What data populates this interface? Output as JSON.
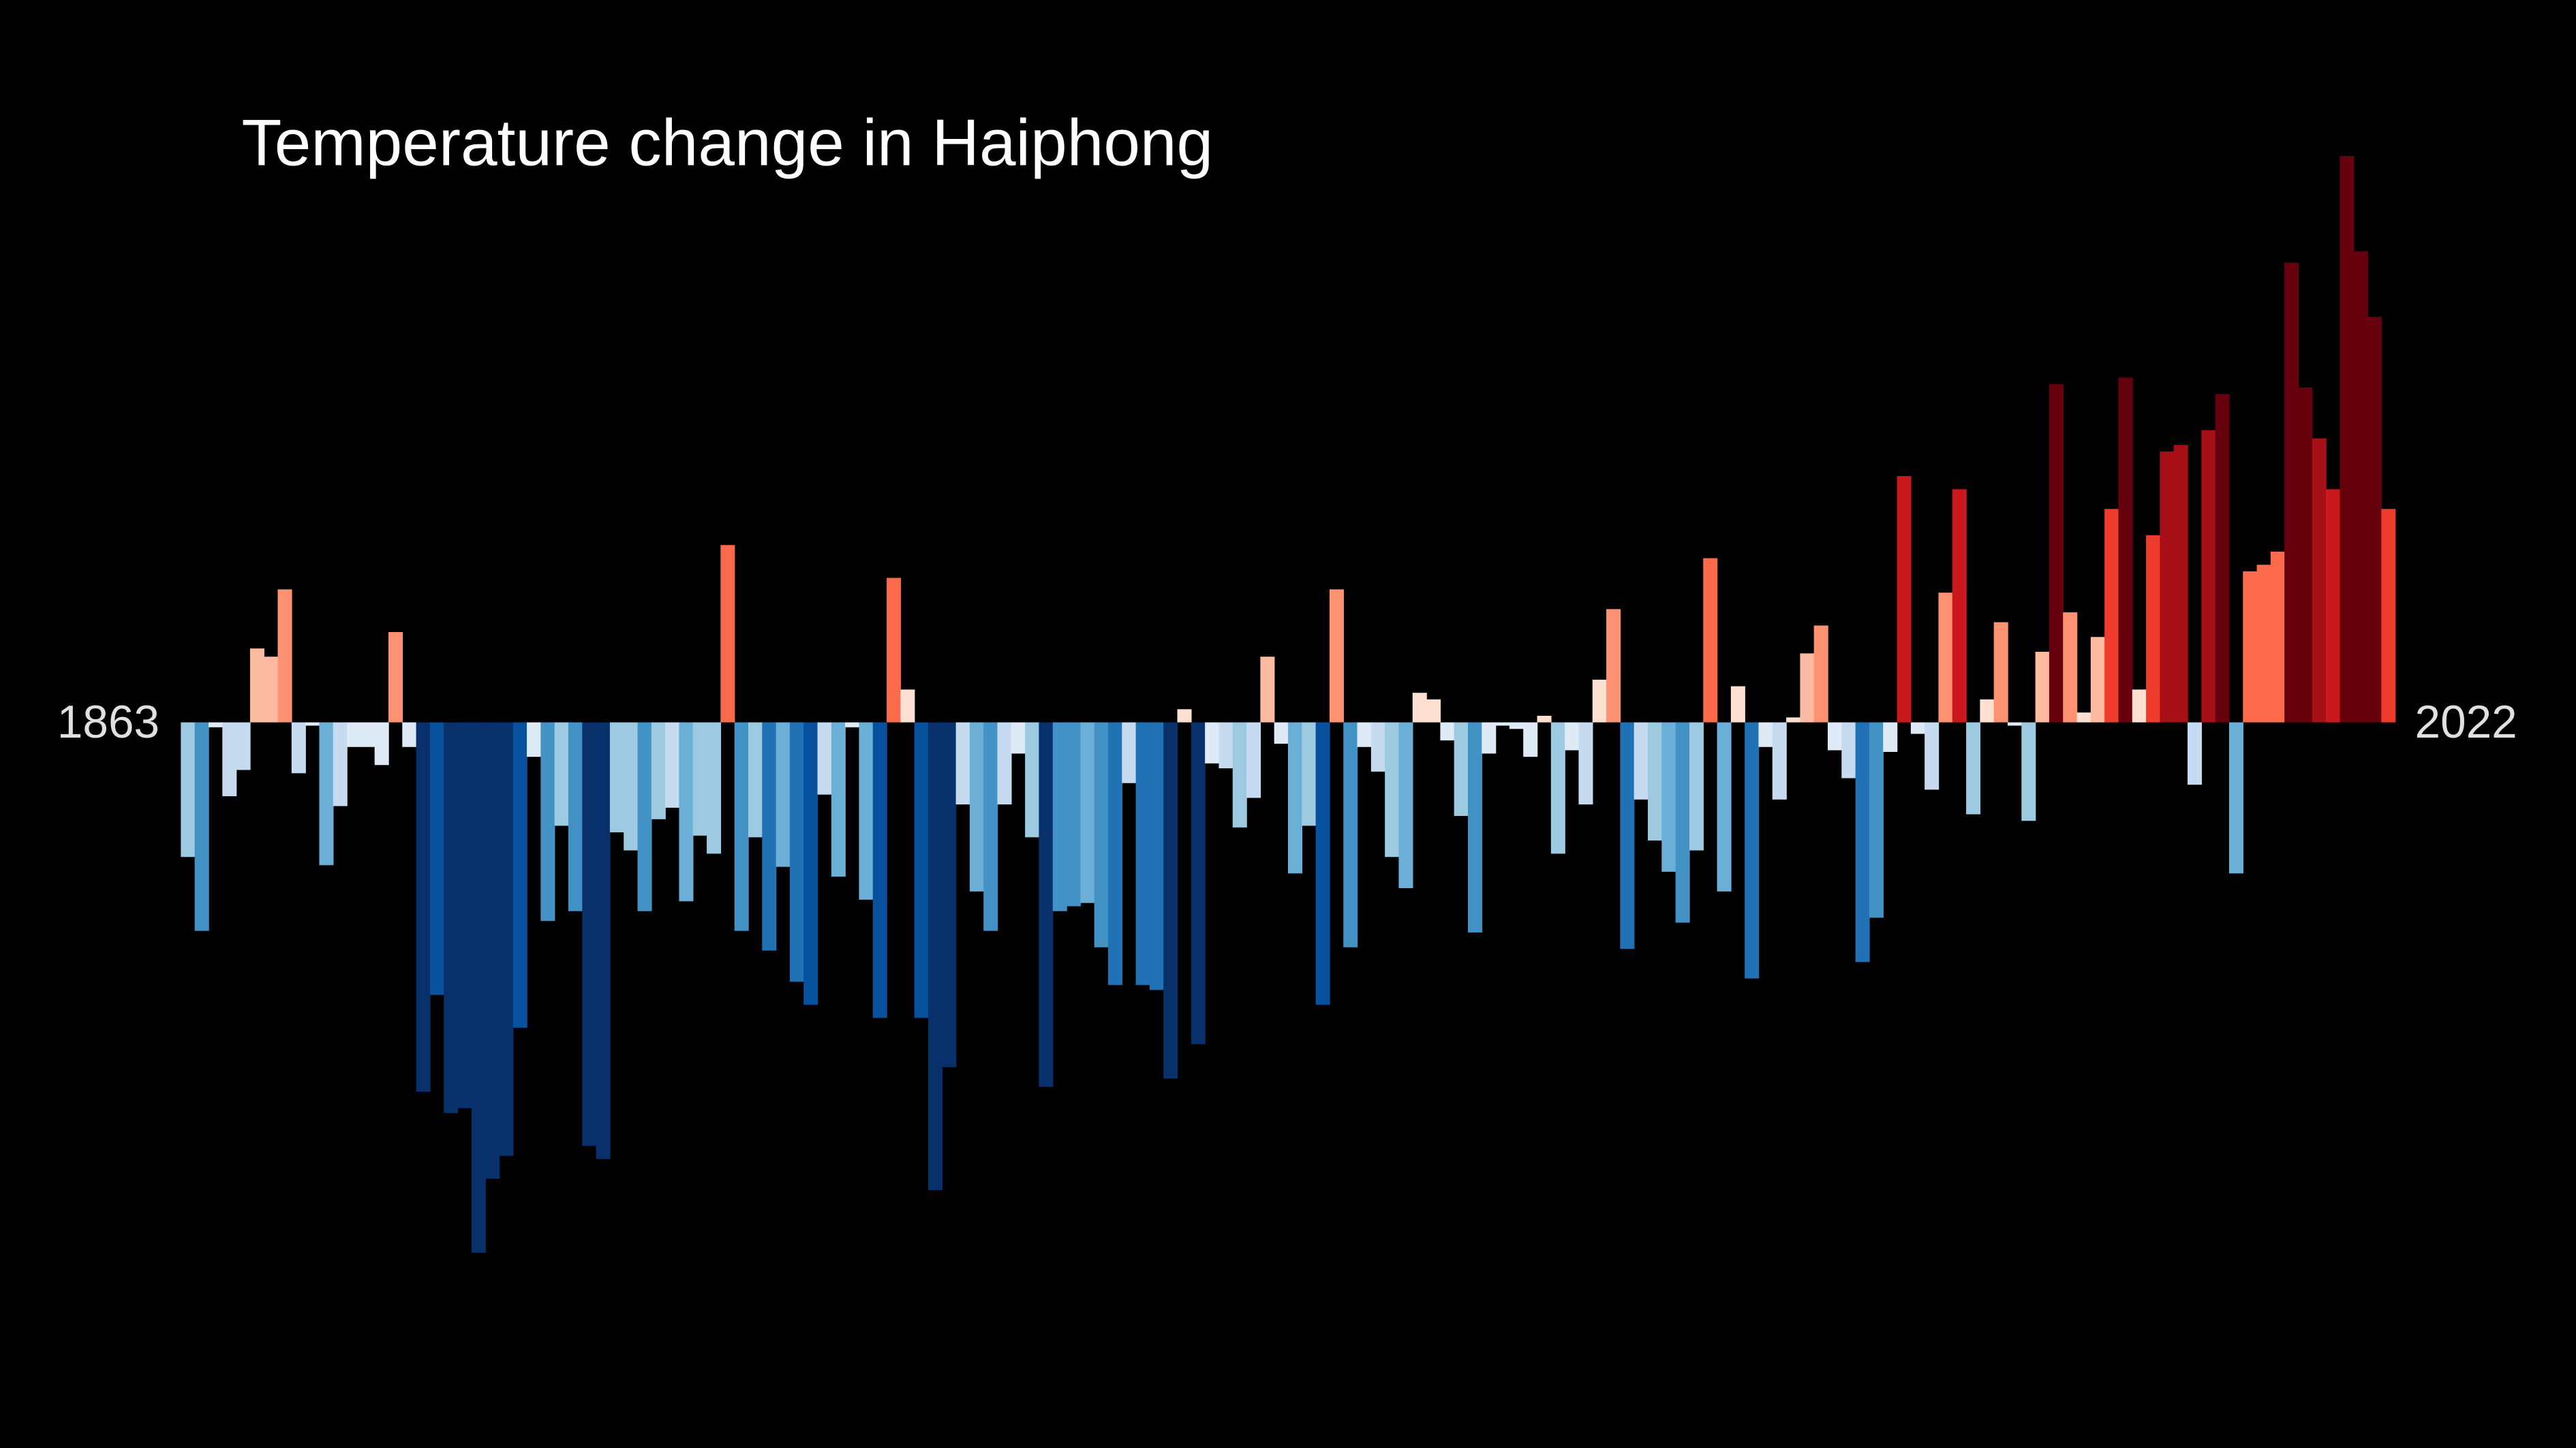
{
  "chart_data": {
    "type": "bar",
    "title": "Temperature change in Haiphong",
    "categories": [
      "1863",
      null,
      null,
      null,
      null,
      null,
      null,
      null,
      null,
      null,
      null,
      null,
      null,
      null,
      null,
      null,
      null,
      null,
      null,
      null,
      null,
      null,
      null,
      null,
      null,
      null,
      null,
      null,
      null,
      null,
      null,
      null,
      null,
      null,
      null,
      null,
      null,
      null,
      null,
      null,
      null,
      null,
      null,
      null,
      null,
      null,
      null,
      null,
      null,
      null,
      null,
      null,
      null,
      null,
      null,
      null,
      null,
      null,
      null,
      null,
      null,
      null,
      null,
      null,
      null,
      null,
      null,
      null,
      null,
      null,
      null,
      null,
      null,
      null,
      null,
      null,
      null,
      null,
      null,
      null,
      null,
      null,
      null,
      null,
      null,
      null,
      null,
      null,
      null,
      null,
      null,
      null,
      null,
      null,
      null,
      null,
      null,
      null,
      null,
      null,
      null,
      null,
      null,
      null,
      null,
      null,
      null,
      null,
      null,
      null,
      null,
      null,
      null,
      null,
      null,
      null,
      null,
      null,
      null,
      null,
      null,
      null,
      null,
      null,
      null,
      null,
      null,
      null,
      null,
      null,
      null,
      null,
      null,
      null,
      null,
      null,
      null,
      null,
      null,
      null,
      null,
      null,
      null,
      null,
      null,
      null,
      null,
      null,
      null,
      null,
      null,
      null,
      null,
      null,
      null,
      null,
      null,
      null,
      null,
      "2022"
    ],
    "values": [
      -0.41,
      -0.635,
      -0.015,
      -0.225,
      -0.145,
      0.225,
      0.2,
      0.405,
      -0.155,
      -0.01,
      -0.435,
      -0.255,
      -0.075,
      -0.075,
      -0.13,
      0.275,
      -0.075,
      -1.125,
      -0.83,
      -1.19,
      -1.175,
      -1.615,
      -1.39,
      -1.32,
      -0.93,
      -0.105,
      -0.605,
      -0.315,
      -0.575,
      -1.29,
      -1.33,
      -0.335,
      -0.39,
      -0.575,
      -0.295,
      -0.26,
      -0.545,
      -0.345,
      -0.4,
      0.54,
      -0.635,
      -0.35,
      -0.695,
      -0.44,
      -0.79,
      -0.86,
      -0.22,
      -0.47,
      -0.015,
      -0.54,
      -0.9,
      0.44,
      0.1,
      -0.9,
      -1.425,
      -1.05,
      -0.25,
      -0.515,
      -0.635,
      -0.25,
      -0.095,
      -0.35,
      -1.11,
      -0.575,
      -0.56,
      -0.55,
      -0.685,
      -0.8,
      -0.185,
      -0.8,
      -0.815,
      -1.085,
      0.04,
      -0.98,
      -0.125,
      -0.14,
      -0.32,
      -0.23,
      0.2,
      -0.065,
      -0.46,
      -0.315,
      -0.86,
      0.405,
      -0.685,
      -0.075,
      -0.15,
      -0.41,
      -0.505,
      0.09,
      0.07,
      -0.055,
      -0.285,
      -0.64,
      -0.095,
      -0.01,
      -0.02,
      -0.105,
      0.02,
      -0.4,
      -0.085,
      -0.25,
      0.13,
      0.345,
      -0.69,
      -0.235,
      -0.36,
      -0.455,
      -0.61,
      -0.39,
      0.5,
      -0.515,
      0.11,
      -0.78,
      -0.075,
      -0.235,
      0.015,
      0.21,
      0.295,
      -0.085,
      -0.17,
      -0.73,
      -0.595,
      -0.09,
      0.75,
      -0.035,
      -0.205,
      0.395,
      0.71,
      -0.28,
      0.07,
      0.305,
      -0.01,
      -0.3,
      0.215,
      1.03,
      0.335,
      0.03,
      0.26,
      0.65,
      1.05,
      0.1,
      0.57,
      0.825,
      0.845,
      -0.19,
      0.89,
      1.0,
      -0.46,
      0.46,
      0.48,
      0.52,
      1.4,
      1.02,
      0.865,
      0.71,
      1.725,
      1.435,
      1.235,
      0.65
    ],
    "ylim": [
      -1.7,
      1.75
    ],
    "color_limits": [
      -1.1,
      1.1
    ],
    "palette": [
      "#08306b",
      "#08519c",
      "#2171b5",
      "#4292c6",
      "#6baed6",
      "#9ecae1",
      "#c6dbef",
      "#deebf7",
      "#fee0d2",
      "#fcbba1",
      "#fc9272",
      "#fb6a4a",
      "#ef3b2c",
      "#cb181d",
      "#a50f15",
      "#67000d"
    ],
    "grid": false
  }
}
